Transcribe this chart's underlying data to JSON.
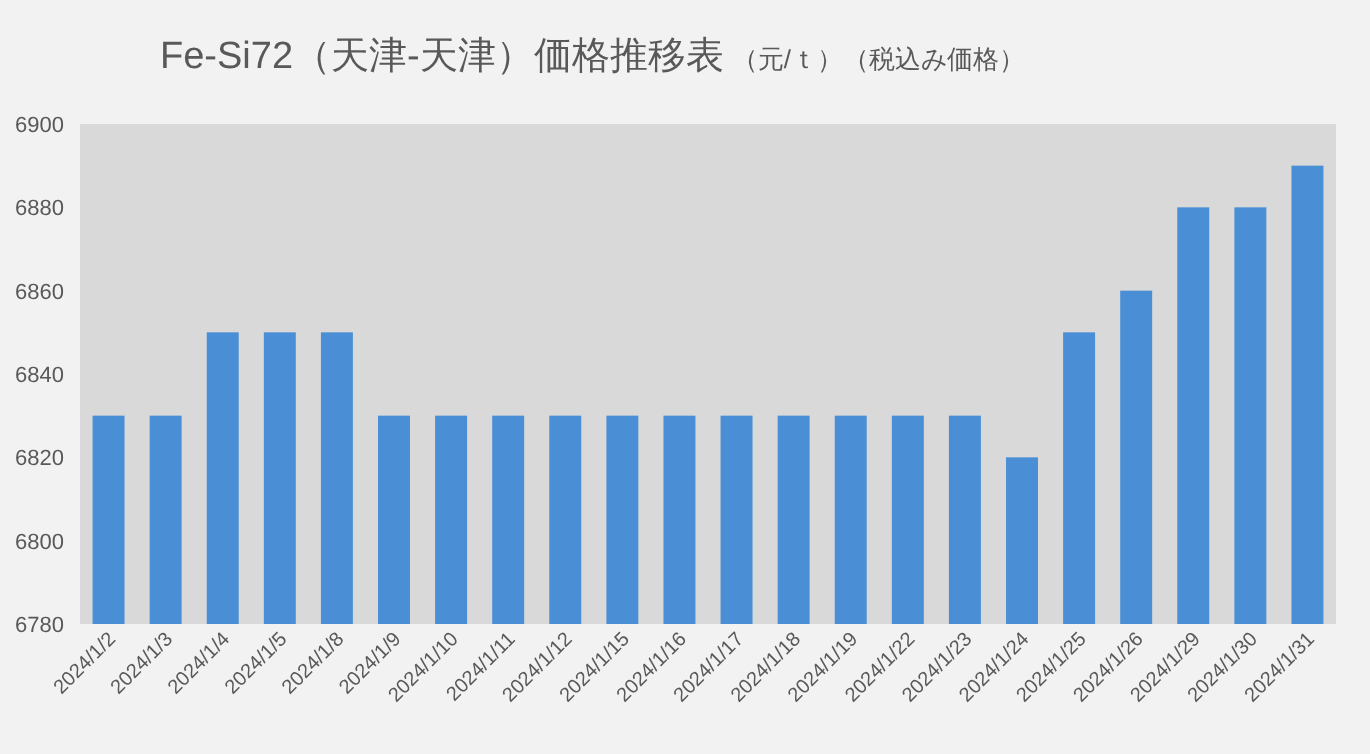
{
  "chart_data": {
    "type": "bar",
    "title": "Fe-Si72（天津-天津）価格推移表",
    "subtitle": "（元/ｔ）（税込み価格）",
    "categories": [
      "2024/1/2",
      "2024/1/3",
      "2024/1/4",
      "2024/1/5",
      "2024/1/8",
      "2024/1/9",
      "2024/1/10",
      "2024/1/11",
      "2024/1/12",
      "2024/1/15",
      "2024/1/16",
      "2024/1/17",
      "2024/1/18",
      "2024/1/19",
      "2024/1/22",
      "2024/1/23",
      "2024/1/24",
      "2024/1/25",
      "2024/1/26",
      "2024/1/29",
      "2024/1/30",
      "2024/1/31"
    ],
    "values": [
      6830,
      6830,
      6850,
      6850,
      6850,
      6830,
      6830,
      6830,
      6830,
      6830,
      6830,
      6830,
      6830,
      6830,
      6830,
      6830,
      6820,
      6850,
      6860,
      6880,
      6880,
      6890
    ],
    "color": "#4a8fd6",
    "ylim": [
      6780,
      6900
    ],
    "yticks": [
      6780,
      6800,
      6820,
      6840,
      6860,
      6880,
      6900
    ],
    "grid": false
  }
}
